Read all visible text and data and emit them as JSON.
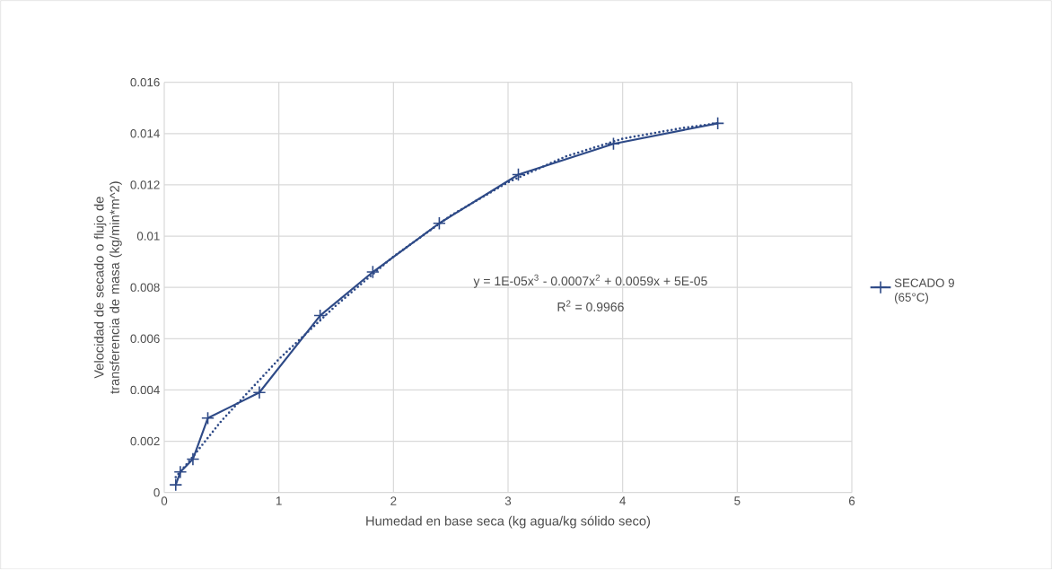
{
  "chart_data": {
    "type": "line",
    "xlabel": "Humedad en base seca (kg agua/kg sólido seco)",
    "ylabel": "Velocidad de secado o flujo de transferencia de masa (kg/min*m^2)",
    "xlim": [
      0,
      6
    ],
    "xticks": [
      0,
      1,
      2,
      3,
      4,
      5,
      6
    ],
    "ylim": [
      0,
      0.016
    ],
    "yticks": [
      0,
      0.002,
      0.004,
      0.006,
      0.008,
      0.01,
      0.012,
      0.014,
      0.016
    ],
    "grid": true,
    "legend": "right",
    "marker": "cross",
    "line_style": "solid",
    "annotations": [
      "y = 1E-05x$^{3}$ - 0.0007x$^{2}$ + 0.0059x + 5E-05",
      "R$^{2}$ = 0.9966"
    ],
    "series": [
      {
        "name": "SECADO 9 (65°C)",
        "color": "#2e4a87",
        "x": [
          0.1,
          0.14,
          0.25,
          0.38,
          0.83,
          1.36,
          1.82,
          2.4,
          3.09,
          3.92,
          4.83
        ],
        "values": [
          0.0003,
          0.0008,
          0.0013,
          0.0029,
          0.0039,
          0.0069,
          0.0086,
          0.0105,
          0.0124,
          0.0136,
          0.0144
        ]
      },
      {
        "type": "line",
        "color": "#2e4a87",
        "line_style": "dotted",
        "marker": "none",
        "x": [
          0.1,
          0.25,
          0.5,
          0.75,
          1.0,
          1.5,
          2.0,
          2.5,
          3.0,
          3.5,
          4.0,
          4.5,
          4.83
        ],
        "values": [
          0.0006,
          0.0014,
          0.0028,
          0.004,
          0.0052,
          0.0073,
          0.0092,
          0.0108,
          0.0121,
          0.0131,
          0.0138,
          0.0142,
          0.0144
        ]
      }
    ]
  }
}
